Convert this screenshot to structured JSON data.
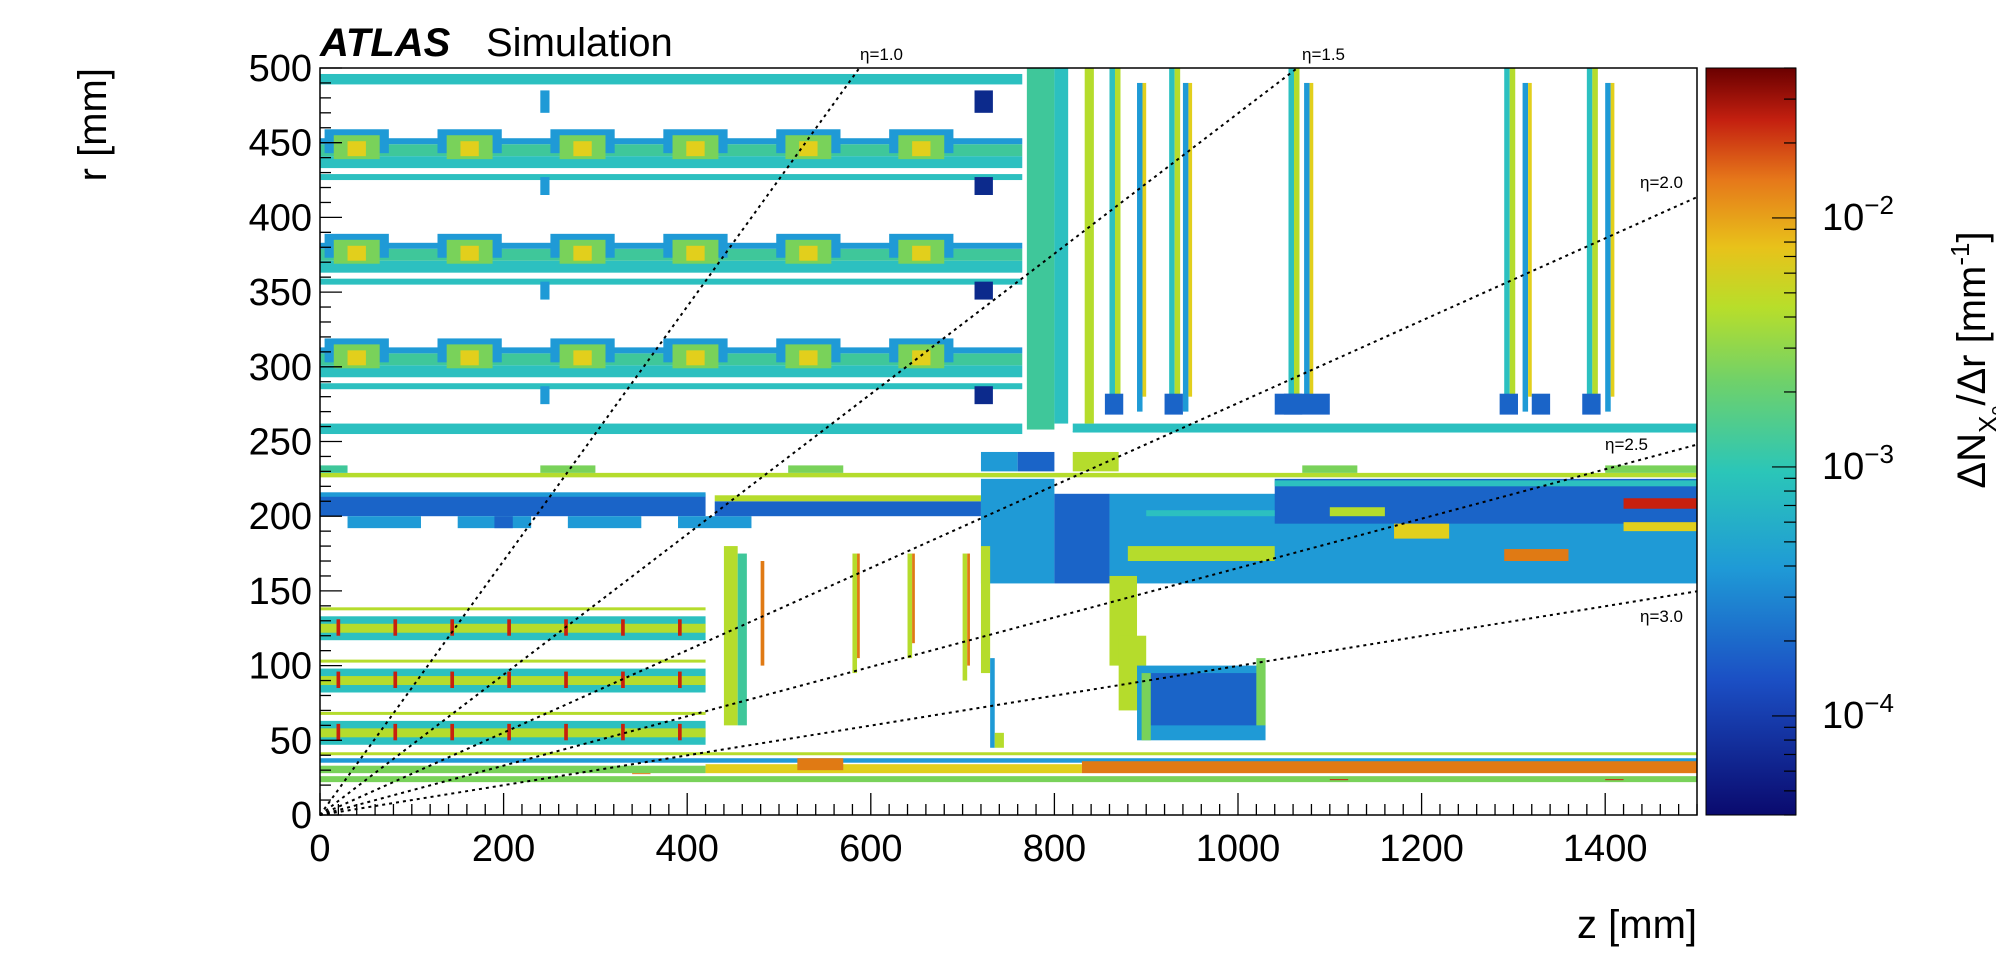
{
  "header": {
    "experiment": "ATLAS",
    "qualifier": "Simulation"
  },
  "chart_data": {
    "type": "heatmap",
    "title": "",
    "xlabel": "z [mm]",
    "ylabel": "r [mm]",
    "xlim": [
      0,
      1500
    ],
    "ylim": [
      0,
      500
    ],
    "xticks": [
      0,
      200,
      400,
      600,
      800,
      1000,
      1200,
      1400
    ],
    "yticks": [
      0,
      50,
      100,
      150,
      200,
      250,
      300,
      350,
      400,
      450,
      500
    ],
    "colorbar": {
      "label_main": "ΔN",
      "label_sub": "X",
      "label_subsub": "0",
      "label_rest": "/Δr [mm",
      "label_sup": "-1",
      "label_close": "]",
      "scale": "log",
      "range": [
        4e-05,
        0.04
      ],
      "ticks": [
        {
          "base": "10",
          "exp": "−2",
          "value": 0.01
        },
        {
          "base": "10",
          "exp": "−3",
          "value": 0.001
        },
        {
          "base": "10",
          "exp": "−4",
          "value": 0.0001
        }
      ]
    },
    "eta_lines": [
      {
        "label": "η=1.0",
        "eta": 1.0
      },
      {
        "label": "η=1.5",
        "eta": 1.5
      },
      {
        "label": "η=2.0",
        "eta": 2.0
      },
      {
        "label": "η=2.5",
        "eta": 2.5
      },
      {
        "label": "η=3.0",
        "eta": 3.0
      }
    ],
    "colors": {
      "low": "#0d1f8a",
      "mid_low": "#1f8fd0",
      "mid": "#2fc4b0",
      "mid_high": "#a8d62a",
      "high": "#e07a14",
      "max": "#7a0000"
    }
  }
}
